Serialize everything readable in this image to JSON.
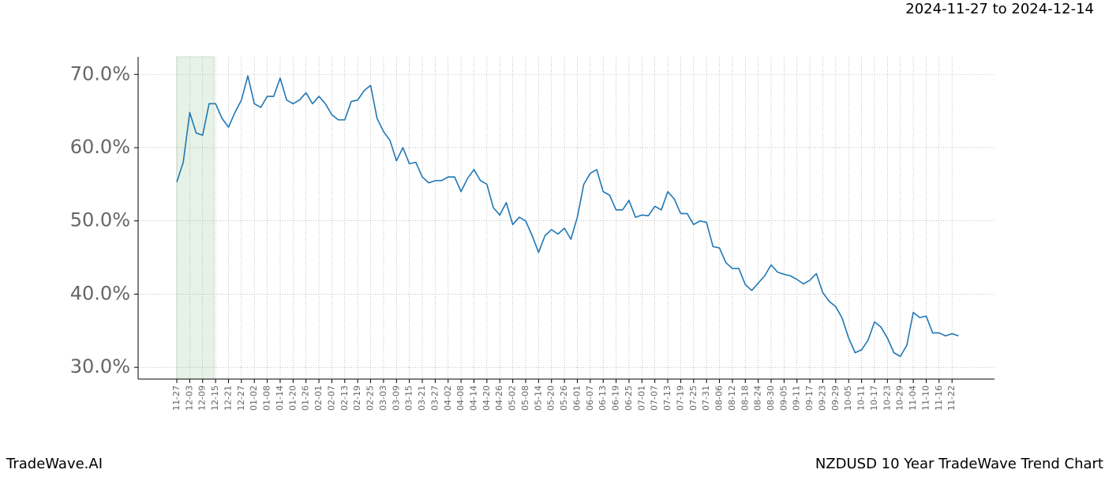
{
  "chart_data": {
    "type": "line",
    "title": "NZDUSD 10 Year TradeWave Trend Chart",
    "subtitle": "2024-11-27 to 2024-12-14",
    "brand": "TradeWave.AI",
    "color": "#1f77b4",
    "grid": true,
    "ylim": [
      28.4,
      72.4
    ],
    "yticks": [
      {
        "value": 30,
        "label": "30.0%"
      },
      {
        "value": 40,
        "label": "40.0%"
      },
      {
        "value": 50,
        "label": "50.0%"
      },
      {
        "value": 60,
        "label": "60.0%"
      },
      {
        "value": 70,
        "label": "70.0%"
      }
    ],
    "categories": [
      "11-27",
      null,
      "12-03",
      null,
      "12-09",
      null,
      "12-15",
      null,
      "12-21",
      null,
      "12-27",
      null,
      "01-02",
      null,
      "01-08",
      null,
      "01-14",
      null,
      "01-20",
      null,
      "01-26",
      null,
      "02-01",
      null,
      "02-07",
      null,
      "02-13",
      null,
      "02-19",
      null,
      "02-25",
      null,
      "03-03",
      null,
      "03-09",
      null,
      "03-15",
      null,
      "03-21",
      null,
      "03-27",
      null,
      "04-02",
      null,
      "04-08",
      null,
      "04-14",
      null,
      "04-20",
      null,
      "04-26",
      null,
      "05-02",
      null,
      "05-08",
      null,
      "05-14",
      null,
      "05-20",
      null,
      "05-26",
      null,
      "06-01",
      null,
      "06-07",
      null,
      "06-13",
      null,
      "06-19",
      null,
      "06-25",
      null,
      "07-01",
      null,
      "07-07",
      null,
      "07-13",
      null,
      "07-19",
      null,
      "07-25",
      null,
      "07-31",
      null,
      "08-06",
      null,
      "08-12",
      null,
      "08-18",
      null,
      "08-24",
      null,
      "08-30",
      null,
      "09-05",
      null,
      "09-11",
      null,
      "09-17",
      null,
      "09-23",
      null,
      "09-29",
      null,
      "10-05",
      null,
      "10-11",
      null,
      "10-17",
      null,
      "10-23",
      null,
      "10-29",
      null,
      "11-04",
      null,
      "11-10",
      null,
      "11-16",
      null,
      "11-22",
      null
    ],
    "values": [
      55.3,
      58,
      64.8,
      62,
      61.7,
      66,
      66,
      64,
      62.8,
      64.8,
      66.5,
      69.8,
      66,
      65.5,
      67,
      67,
      69.5,
      66.5,
      66,
      66.5,
      67.5,
      66,
      67,
      66,
      64.5,
      63.8,
      63.8,
      66.3,
      66.5,
      67.8,
      68.5,
      64,
      62.2,
      61,
      58.2,
      60,
      57.8,
      58,
      56,
      55.2,
      55.5,
      55.5,
      56,
      56,
      54,
      55.8,
      57,
      55.5,
      55,
      51.8,
      50.8,
      52.5,
      49.5,
      50.5,
      50,
      48,
      45.7,
      48,
      48.8,
      48.2,
      49,
      47.5,
      50.5,
      55,
      56.5,
      57,
      54,
      53.5,
      51.5,
      51.5,
      52.8,
      50.5,
      50.8,
      50.7,
      52,
      51.5,
      54,
      53,
      51,
      51,
      49.5,
      50,
      49.8,
      46.5,
      46.3,
      44.3,
      43.5,
      43.5,
      41.3,
      40.5,
      41.5,
      42.5,
      44,
      43,
      42.7,
      42.5,
      42,
      41.4,
      41.9,
      42.8,
      40.2,
      39,
      38.3,
      36.7,
      34,
      32,
      32.4,
      33.7,
      36.2,
      35.5,
      34,
      32,
      31.5,
      33,
      37.5,
      36.8,
      37,
      34.7,
      34.7,
      34.3,
      34.6,
      34.3
    ]
  }
}
